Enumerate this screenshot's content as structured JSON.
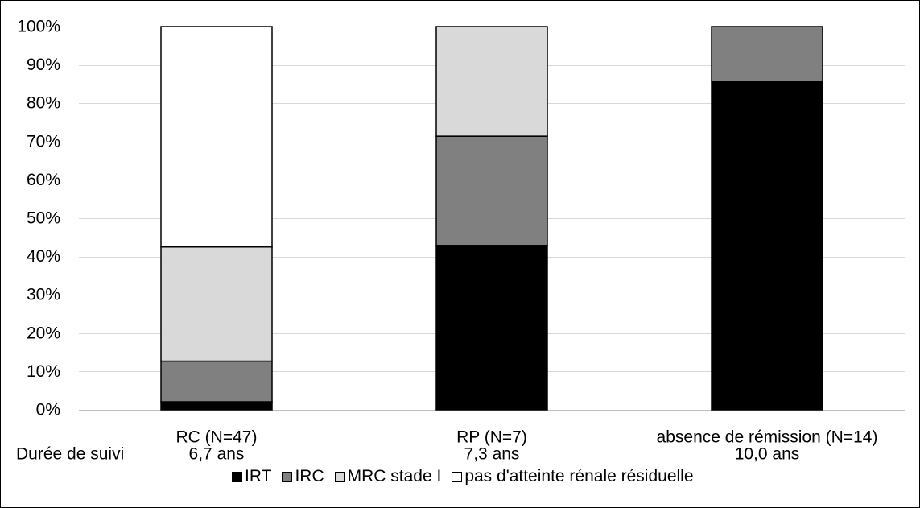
{
  "chart_data": {
    "type": "bar",
    "stacked": true,
    "categories": [
      "RC (N=47)",
      "RP (N=7)",
      "absence de rémission (N=14)"
    ],
    "category_sublabels_title": "Durée de suivi",
    "category_sublabels": [
      "6,7 ans",
      "7,3 ans",
      "10,0 ans"
    ],
    "series": [
      {
        "name": "IRT",
        "color": "#000000",
        "values": [
          2.1,
          42.9,
          85.7
        ]
      },
      {
        "name": "IRC",
        "color": "#808080",
        "values": [
          10.6,
          28.5,
          14.3
        ]
      },
      {
        "name": "MRC stade I",
        "color": "#d9d9d9",
        "values": [
          29.8,
          28.6,
          0
        ]
      },
      {
        "name": "pas d'atteinte rénale résiduelle",
        "color": "#ffffff",
        "values": [
          57.5,
          0,
          0
        ]
      }
    ],
    "ylim": [
      0,
      100
    ],
    "yticks": [
      0,
      10,
      20,
      30,
      40,
      50,
      60,
      70,
      80,
      90,
      100
    ],
    "ytick_labels": [
      "0%",
      "10%",
      "20%",
      "30%",
      "40%",
      "50%",
      "60%",
      "70%",
      "80%",
      "90%",
      "100%"
    ],
    "grid": true,
    "legend_position": "bottom"
  }
}
